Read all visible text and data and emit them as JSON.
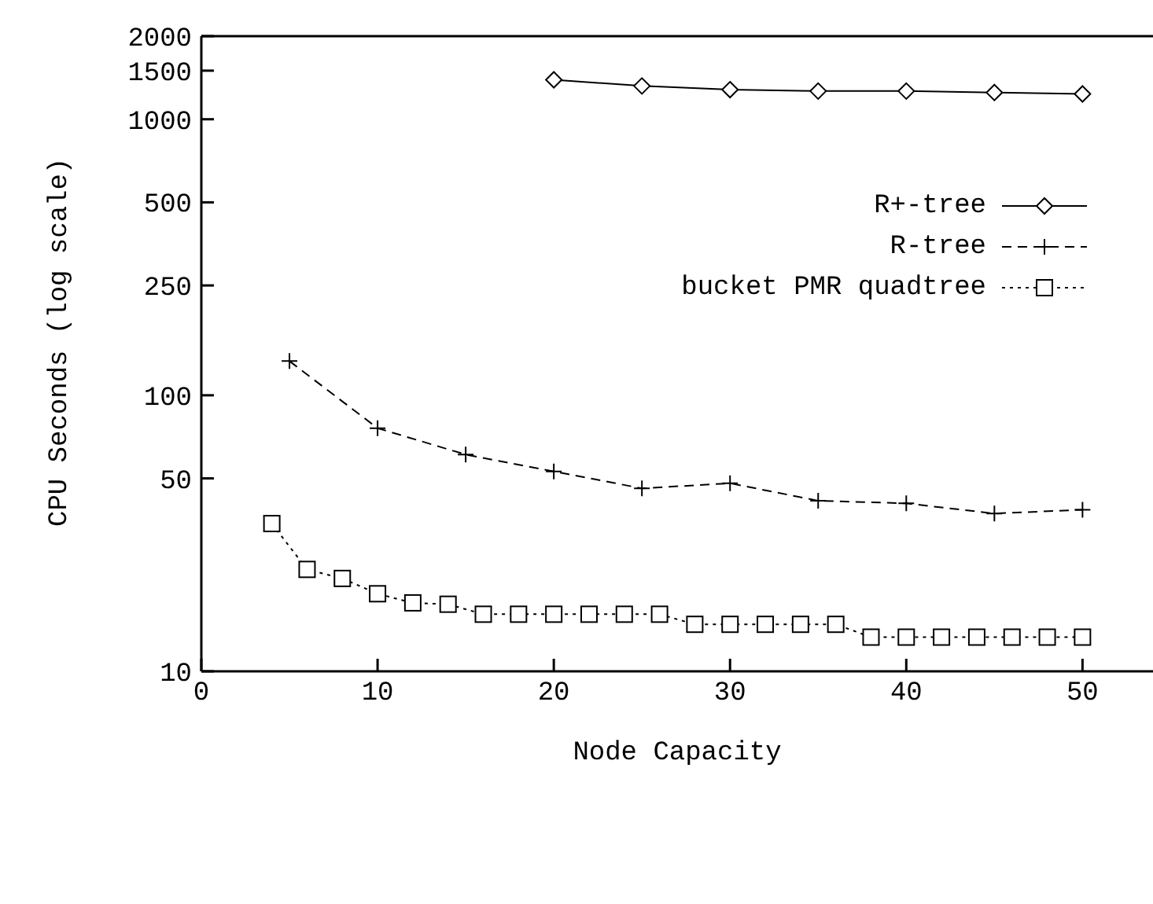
{
  "chart_data": {
    "type": "line",
    "xlabel": "Node Capacity",
    "ylabel": "CPU Seconds (log scale)",
    "log": "y",
    "xlim": [
      0,
      54
    ],
    "xticks": [
      0,
      10,
      20,
      30,
      40,
      50
    ],
    "ylim": [
      10,
      2000
    ],
    "yticks": [
      10,
      50,
      100,
      250,
      500,
      1000,
      1500,
      2000
    ],
    "legend": "top right",
    "series": [
      {
        "name": "R+-tree",
        "color": "#000000",
        "marker": "diamond",
        "line_style": "solid",
        "x": [
          20,
          25,
          30,
          35,
          40,
          45,
          50
        ],
        "values": [
          1390,
          1320,
          1280,
          1265,
          1265,
          1250,
          1235
        ]
      },
      {
        "name": "R-tree",
        "color": "#000000",
        "marker": "cross",
        "line_style": "dashed",
        "x": [
          5,
          10,
          15,
          20,
          25,
          30,
          35,
          40,
          45,
          50
        ],
        "values": [
          133,
          76,
          61,
          53,
          46,
          48,
          41.5,
          40.6,
          37.3,
          38.5
        ]
      },
      {
        "name": "bucket PMR quadtree",
        "color": "#000000",
        "marker": "square",
        "line_style": "dotted",
        "x": [
          4,
          6,
          8,
          10,
          12,
          14,
          16,
          18,
          20,
          22,
          24,
          26,
          28,
          30,
          32,
          34,
          36,
          38,
          40,
          42,
          44,
          46,
          48,
          50
        ],
        "values": [
          34.3,
          23.4,
          21.7,
          19.1,
          17.7,
          17.5,
          16.1,
          16.1,
          16.1,
          16.1,
          16.1,
          16.1,
          14.8,
          14.8,
          14.8,
          14.8,
          14.8,
          13.3,
          13.3,
          13.3,
          13.3,
          13.3,
          13.3,
          13.3
        ]
      }
    ]
  }
}
